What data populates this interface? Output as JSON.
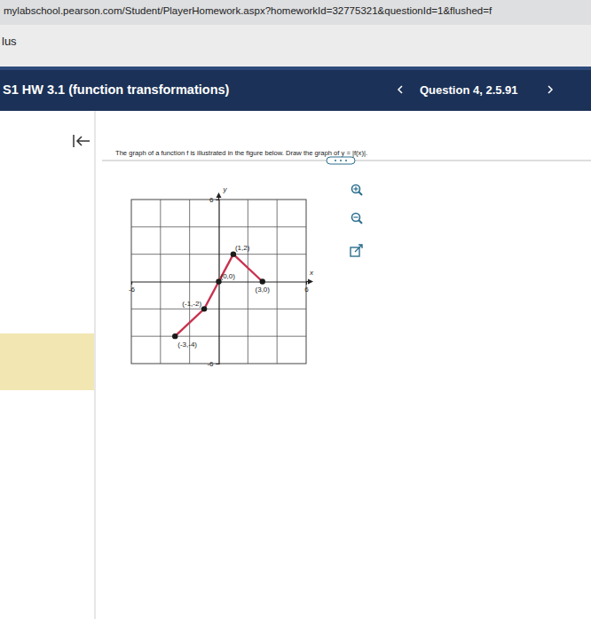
{
  "browser": {
    "url": "mylabschool.pearson.com/Student/PlayerHomework.aspx?homeworkId=32775321&questionId=1&flushed=f"
  },
  "sidebar": {
    "label": "lus"
  },
  "header": {
    "title": "S1 HW 3.1 (function transformations)",
    "question": "Question 4, 2.5.91"
  },
  "question": {
    "text": "The graph of a function f is illustrated in the figure below. Draw the graph of y = |f(x)|."
  },
  "chart_data": {
    "type": "line",
    "x_label": "x",
    "y_label": "y",
    "x": [
      -3,
      -1,
      0,
      1,
      3
    ],
    "values": [
      -4,
      -2,
      0,
      2,
      0
    ],
    "color": "#c8324f",
    "marker": "circle",
    "xlim": [
      -6,
      6
    ],
    "ylim": [
      -6,
      6
    ],
    "xticks": [
      -6,
      6
    ],
    "yticks": [
      -6,
      6
    ],
    "grid": true,
    "xgrid": [
      -4,
      -2,
      2,
      4
    ],
    "ygrid": [
      -4,
      -2,
      2,
      4
    ],
    "annotations": [
      {
        "x": -3,
        "y": -4,
        "text": "(-3,-4)"
      },
      {
        "x": -1,
        "y": -2,
        "text": "(-1,-2)"
      },
      {
        "x": 0,
        "y": 0,
        "text": "(0,0)"
      },
      {
        "x": 1,
        "y": 2,
        "text": "(1,2)"
      },
      {
        "x": 3,
        "y": 0,
        "text": "(3,0)"
      }
    ]
  }
}
